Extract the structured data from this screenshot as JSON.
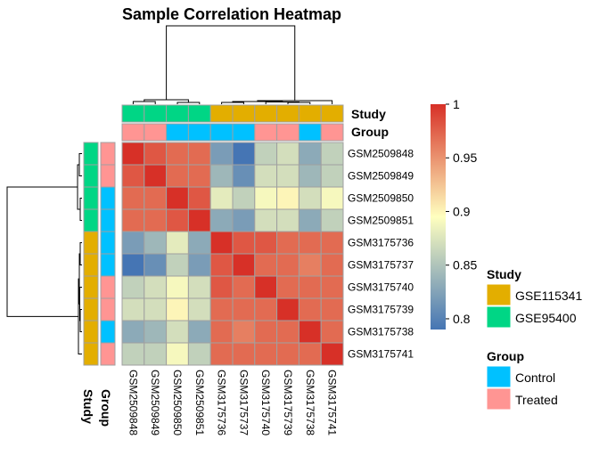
{
  "chart_data": {
    "type": "heatmap",
    "title": "Sample Correlation Heatmap",
    "samples": [
      "GSM2509848",
      "GSM2509849",
      "GSM2509850",
      "GSM2509851",
      "GSM3175736",
      "GSM3175737",
      "GSM3175740",
      "GSM3175739",
      "GSM3175738",
      "GSM3175741"
    ],
    "matrix": [
      [
        1.0,
        0.98,
        0.97,
        0.97,
        0.82,
        0.79,
        0.86,
        0.87,
        0.83,
        0.86
      ],
      [
        0.98,
        1.0,
        0.97,
        0.97,
        0.84,
        0.81,
        0.87,
        0.87,
        0.84,
        0.86
      ],
      [
        0.97,
        0.97,
        1.0,
        0.98,
        0.88,
        0.86,
        0.89,
        0.9,
        0.87,
        0.89
      ],
      [
        0.97,
        0.97,
        0.98,
        1.0,
        0.83,
        0.82,
        0.87,
        0.87,
        0.83,
        0.86
      ],
      [
        0.82,
        0.84,
        0.88,
        0.83,
        1.0,
        0.98,
        0.98,
        0.97,
        0.97,
        0.97
      ],
      [
        0.79,
        0.81,
        0.86,
        0.82,
        0.98,
        1.0,
        0.97,
        0.97,
        0.96,
        0.97
      ],
      [
        0.86,
        0.87,
        0.89,
        0.87,
        0.98,
        0.97,
        1.0,
        0.97,
        0.97,
        0.97
      ],
      [
        0.87,
        0.87,
        0.9,
        0.87,
        0.97,
        0.97,
        0.97,
        1.0,
        0.97,
        0.97
      ],
      [
        0.83,
        0.84,
        0.87,
        0.83,
        0.97,
        0.96,
        0.97,
        0.97,
        1.0,
        0.97
      ],
      [
        0.86,
        0.86,
        0.89,
        0.86,
        0.97,
        0.97,
        0.97,
        0.97,
        0.97,
        1.0
      ]
    ],
    "study": [
      "GSE95400",
      "GSE95400",
      "GSE95400",
      "GSE95400",
      "GSE115341",
      "GSE115341",
      "GSE115341",
      "GSE115341",
      "GSE115341",
      "GSE115341"
    ],
    "group": [
      "Treated",
      "Treated",
      "Control",
      "Control",
      "Control",
      "Control",
      "Treated",
      "Treated",
      "Control",
      "Treated"
    ],
    "annotation_labels": {
      "study": "Study",
      "group": "Group"
    },
    "colorbar": {
      "ticks": [
        0.8,
        0.85,
        0.9,
        0.95,
        1
      ],
      "tick_labels": [
        "0.8",
        "0.85",
        "0.9",
        "0.95",
        "1"
      ],
      "range": [
        0.79,
        1.0
      ]
    },
    "legend": {
      "study": {
        "title": "Study",
        "items": [
          {
            "label": "GSE115341",
            "color": "#E3AE00"
          },
          {
            "label": "GSE95400",
            "color": "#00D685"
          }
        ]
      },
      "group": {
        "title": "Group",
        "items": [
          {
            "label": "Control",
            "color": "#00C1FF"
          },
          {
            "label": "Treated",
            "color": "#FF9593"
          }
        ]
      }
    },
    "dendrogram": "clustered"
  },
  "colors": {
    "scale_low": "#4575B4",
    "scale_mid": "#FFFFBF",
    "scale_high": "#D73027",
    "cell_border": "#A0A0A0"
  }
}
